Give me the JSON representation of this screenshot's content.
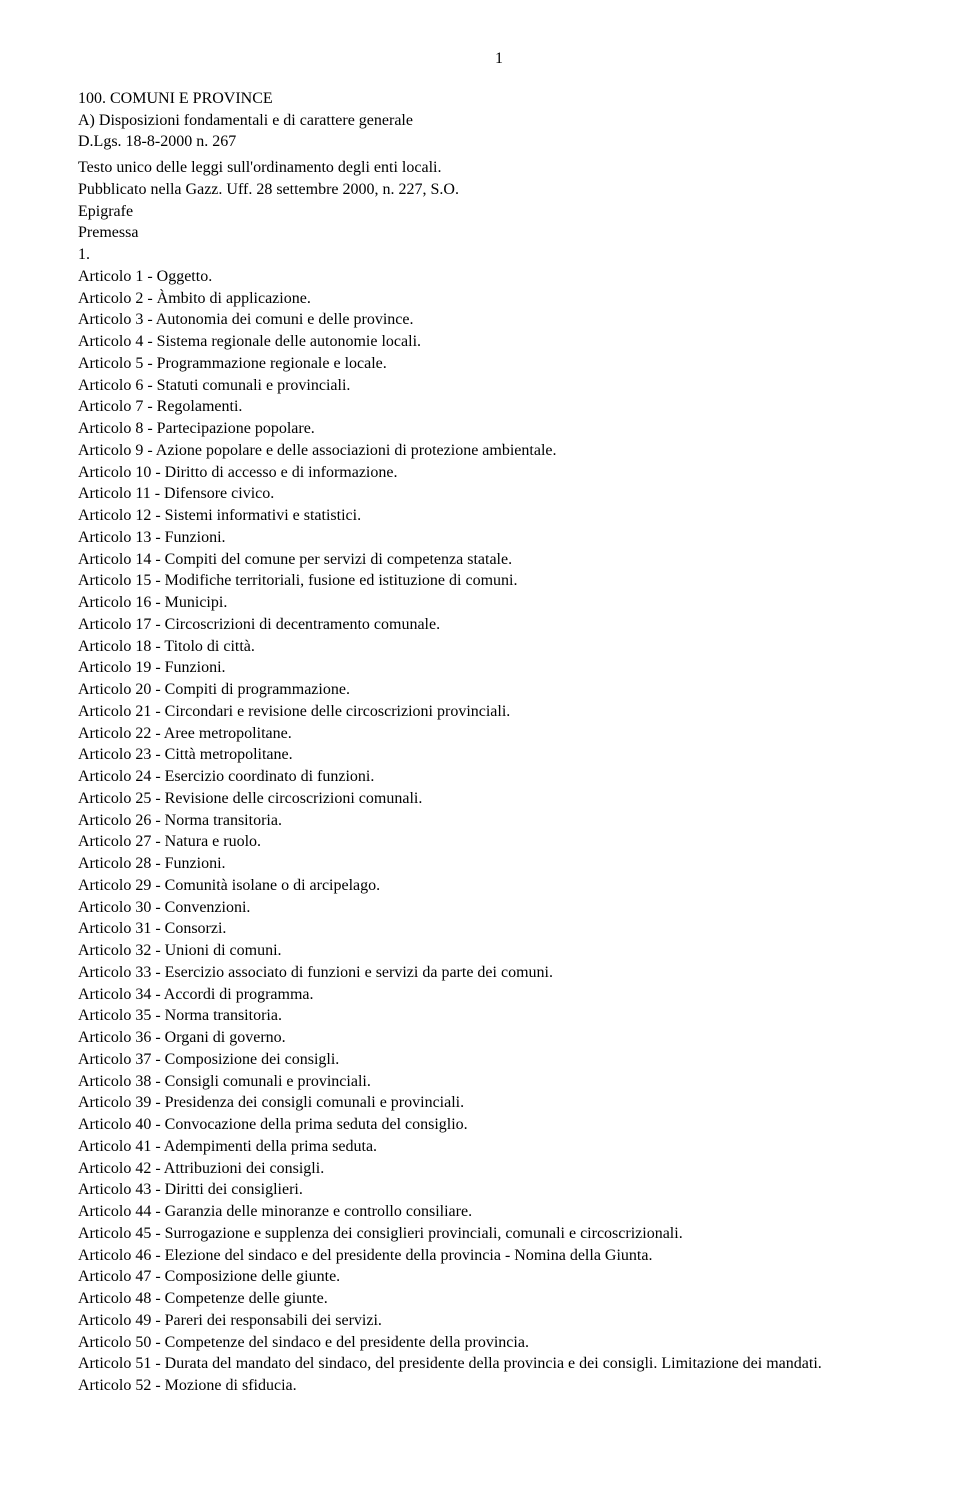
{
  "page_number": "1",
  "heading_lines": [
    "100. COMUNI E PROVINCE",
    "A) Disposizioni fondamentali e di carattere generale",
    "D.Lgs. 18-8-2000 n. 267"
  ],
  "subheading_lines": [
    "Testo unico delle leggi sull'ordinamento degli enti locali.",
    "Pubblicato nella Gazz. Uff. 28 settembre 2000, n. 227, S.O.",
    "Epigrafe",
    "Premessa",
    "1."
  ],
  "articles": [
    "Articolo 1 - Oggetto.",
    "Articolo 2 - Àmbito di applicazione.",
    "Articolo 3 - Autonomia dei comuni e delle province.",
    "Articolo 4 - Sistema regionale delle autonomie locali.",
    "Articolo 5 - Programmazione regionale e locale.",
    "Articolo 6 - Statuti comunali e provinciali.",
    "Articolo 7 - Regolamenti.",
    "Articolo 8 - Partecipazione popolare.",
    "Articolo 9 - Azione popolare e delle associazioni di protezione ambientale.",
    "Articolo 10 - Diritto di accesso e di informazione.",
    "Articolo 11 - Difensore civico.",
    "Articolo 12 - Sistemi informativi e statistici.",
    "Articolo 13 - Funzioni.",
    "Articolo 14 - Compiti del comune per servizi di competenza statale.",
    "Articolo 15 - Modifiche territoriali, fusione ed istituzione di comuni.",
    "Articolo 16 - Municipi.",
    "Articolo 17 - Circoscrizioni di decentramento comunale.",
    "Articolo 18 - Titolo di città.",
    "Articolo 19 - Funzioni.",
    "Articolo 20 - Compiti di programmazione.",
    "Articolo 21 - Circondari e revisione delle circoscrizioni provinciali.",
    "Articolo 22 - Aree metropolitane.",
    "Articolo 23 - Città metropolitane.",
    "Articolo 24 - Esercizio coordinato di funzioni.",
    "Articolo 25 - Revisione delle circoscrizioni comunali.",
    "Articolo 26 - Norma transitoria.",
    "Articolo 27 - Natura e ruolo.",
    "Articolo 28 - Funzioni.",
    "Articolo 29 - Comunità isolane o di arcipelago.",
    "Articolo 30 - Convenzioni.",
    "Articolo 31 - Consorzi.",
    "Articolo 32 - Unioni di comuni.",
    "Articolo 33 - Esercizio associato di funzioni e servizi da parte dei comuni.",
    "Articolo 34 - Accordi di programma.",
    "Articolo 35 - Norma transitoria.",
    "Articolo 36 - Organi di governo.",
    "Articolo 37 - Composizione dei consigli.",
    "Articolo 38 - Consigli comunali e provinciali.",
    "Articolo 39 - Presidenza dei consigli comunali e provinciali.",
    "Articolo 40 - Convocazione della prima seduta del consiglio.",
    "Articolo 41 - Adempimenti della prima seduta.",
    "Articolo 42 - Attribuzioni dei consigli.",
    "Articolo 43 - Diritti dei consiglieri.",
    "Articolo 44 - Garanzia delle minoranze e controllo consiliare.",
    "Articolo 45 - Surrogazione e supplenza dei consiglieri provinciali, comunali e circoscrizionali.",
    "Articolo 46 - Elezione del sindaco e del presidente della provincia - Nomina della Giunta.",
    "Articolo 47 - Composizione delle giunte.",
    "Articolo 48 - Competenze delle giunte.",
    "Articolo 49 - Pareri dei responsabili dei servizi.",
    "Articolo 50 - Competenze del sindaco e del presidente della provincia.",
    "Articolo 51 - Durata del mandato del sindaco, del presidente della provincia e dei consigli. Limitazione dei mandati.",
    "Articolo 52 - Mozione di sfiducia."
  ],
  "typography": {
    "font_family": "Times New Roman",
    "font_size_pt": 12,
    "line_height": 1.36,
    "text_color": "#000000",
    "background_color": "#ffffff"
  }
}
